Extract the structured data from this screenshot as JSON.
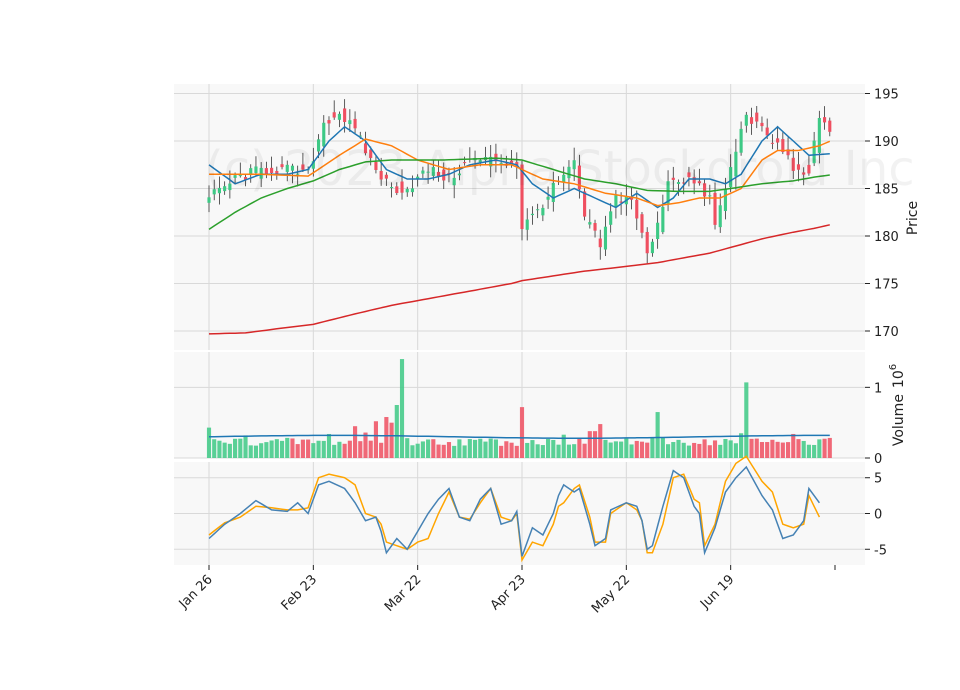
{
  "chart_data": {
    "type": "candlestick",
    "title": "",
    "watermark": "(c) 2023 Alpha Stockdroid Inc",
    "x_tick_labels": [
      "Jan 26",
      "Feb 23",
      "Mar 22",
      "Apr 23",
      "May 22",
      "Jun 19"
    ],
    "x_tick_index": [
      0,
      20,
      40,
      60,
      80,
      100
    ],
    "n_bars": 120,
    "colors": {
      "up": "#3dc985",
      "down": "#ef4f60",
      "ma_short": "#1f77b4",
      "ma_mid": "#ff7f0e",
      "ma_long": "#2ca02c",
      "ma_200": "#d62728",
      "volume_ma": "#1f77b4",
      "osc_1": "#4682b4",
      "osc_2": "#ffa500",
      "panel_bg": "#f8f8f8",
      "grid": "#d9d9d9"
    },
    "price_panel": {
      "ylabel": "Price",
      "ylim": [
        168,
        196
      ],
      "yticks": [
        170,
        175,
        180,
        185,
        190,
        195
      ],
      "close_keyframes": [
        [
          0,
          184
        ],
        [
          5,
          186
        ],
        [
          10,
          187
        ],
        [
          15,
          187
        ],
        [
          19,
          186.5
        ],
        [
          22,
          192
        ],
        [
          25,
          193
        ],
        [
          28,
          191
        ],
        [
          32,
          187
        ],
        [
          35,
          185
        ],
        [
          38,
          185
        ],
        [
          42,
          187
        ],
        [
          46,
          186
        ],
        [
          50,
          188
        ],
        [
          55,
          188
        ],
        [
          59,
          187.5
        ],
        [
          60,
          181
        ],
        [
          62,
          182
        ],
        [
          66,
          185
        ],
        [
          70,
          187.5
        ],
        [
          72,
          182
        ],
        [
          75,
          179
        ],
        [
          78,
          184
        ],
        [
          81,
          184
        ],
        [
          84,
          178
        ],
        [
          86,
          181
        ],
        [
          88,
          186
        ],
        [
          92,
          186
        ],
        [
          94,
          185
        ],
        [
          96,
          184
        ],
        [
          97,
          181
        ],
        [
          99,
          185
        ],
        [
          101,
          189
        ],
        [
          103,
          193
        ],
        [
          106,
          191
        ],
        [
          110,
          189
        ],
        [
          113,
          186.5
        ],
        [
          115,
          187
        ],
        [
          117,
          192
        ],
        [
          120,
          190.5
        ]
      ],
      "ma_short_keyframes": [
        [
          0,
          187.5
        ],
        [
          5,
          185.5
        ],
        [
          10,
          186.5
        ],
        [
          15,
          186.5
        ],
        [
          19,
          187
        ],
        [
          23,
          190
        ],
        [
          26,
          191.5
        ],
        [
          30,
          190
        ],
        [
          34,
          187
        ],
        [
          38,
          186
        ],
        [
          42,
          186
        ],
        [
          46,
          186.5
        ],
        [
          50,
          187.5
        ],
        [
          55,
          188
        ],
        [
          59,
          187.5
        ],
        [
          62,
          185.5
        ],
        [
          66,
          184
        ],
        [
          70,
          185
        ],
        [
          74,
          184
        ],
        [
          78,
          183
        ],
        [
          82,
          184.5
        ],
        [
          86,
          183
        ],
        [
          89,
          184
        ],
        [
          92,
          186
        ],
        [
          96,
          186
        ],
        [
          99,
          185.5
        ],
        [
          102,
          186.5
        ],
        [
          106,
          190
        ],
        [
          109,
          191.5
        ],
        [
          112,
          190
        ],
        [
          115,
          188.5
        ],
        [
          120,
          188.7
        ]
      ],
      "ma_mid_keyframes": [
        [
          0,
          186.5
        ],
        [
          10,
          186.5
        ],
        [
          19,
          186.3
        ],
        [
          25,
          188.5
        ],
        [
          30,
          190.2
        ],
        [
          35,
          189.5
        ],
        [
          40,
          188
        ],
        [
          46,
          187
        ],
        [
          52,
          187.5
        ],
        [
          58,
          187.5
        ],
        [
          64,
          186
        ],
        [
          70,
          185.5
        ],
        [
          76,
          184.5
        ],
        [
          82,
          184
        ],
        [
          86,
          183.2
        ],
        [
          90,
          183.5
        ],
        [
          94,
          184
        ],
        [
          98,
          184
        ],
        [
          102,
          185
        ],
        [
          106,
          188
        ],
        [
          109,
          189
        ],
        [
          113,
          189
        ],
        [
          117,
          189.5
        ],
        [
          120,
          190.2
        ]
      ],
      "ma_long_keyframes": [
        [
          0,
          180.7
        ],
        [
          5,
          182.5
        ],
        [
          10,
          184
        ],
        [
          15,
          185
        ],
        [
          20,
          185.8
        ],
        [
          25,
          187
        ],
        [
          30,
          187.8
        ],
        [
          35,
          188
        ],
        [
          45,
          188
        ],
        [
          55,
          188.2
        ],
        [
          60,
          188
        ],
        [
          66,
          187
        ],
        [
          72,
          186
        ],
        [
          78,
          185.5
        ],
        [
          84,
          184.8
        ],
        [
          90,
          184.7
        ],
        [
          96,
          184.7
        ],
        [
          100,
          185
        ],
        [
          106,
          185.5
        ],
        [
          112,
          185.8
        ],
        [
          116,
          186.2
        ],
        [
          120,
          186.5
        ]
      ],
      "ma_200_keyframes": [
        [
          0,
          169.7
        ],
        [
          7,
          169.8
        ],
        [
          14,
          170.3
        ],
        [
          20,
          170.7
        ],
        [
          28,
          171.8
        ],
        [
          35,
          172.7
        ],
        [
          42,
          173.4
        ],
        [
          50,
          174.2
        ],
        [
          58,
          175
        ],
        [
          60,
          175.3
        ],
        [
          66,
          175.8
        ],
        [
          72,
          176.3
        ],
        [
          80,
          176.8
        ],
        [
          86,
          177.2
        ],
        [
          90,
          177.6
        ],
        [
          96,
          178.2
        ],
        [
          100,
          178.8
        ],
        [
          106,
          179.7
        ],
        [
          112,
          180.4
        ],
        [
          116,
          180.8
        ],
        [
          120,
          181.3
        ]
      ]
    },
    "volume_panel": {
      "ylabel": "Volume",
      "scale_label": "10^6",
      "ylim": [
        0,
        1.5
      ],
      "yticks": [
        0,
        1
      ],
      "base_volume": 0.23,
      "spikes": [
        [
          0,
          0.43
        ],
        [
          7,
          0.32
        ],
        [
          23,
          0.34
        ],
        [
          28,
          0.45
        ],
        [
          30,
          0.36
        ],
        [
          32,
          0.52
        ],
        [
          34,
          0.58
        ],
        [
          35,
          0.5
        ],
        [
          36,
          0.75
        ],
        [
          37,
          1.4
        ],
        [
          60,
          0.72
        ],
        [
          68,
          0.33
        ],
        [
          73,
          0.38
        ],
        [
          74,
          0.38
        ],
        [
          75,
          0.48
        ],
        [
          86,
          0.65
        ],
        [
          102,
          0.35
        ],
        [
          103,
          1.07
        ],
        [
          112,
          0.34
        ]
      ],
      "ma_level": 0.3
    },
    "oscillator_panel": {
      "ylim": [
        -7.2,
        7.2
      ],
      "yticks": [
        -5,
        0,
        5
      ],
      "line1_keyframes": [
        [
          0,
          -3.5
        ],
        [
          3,
          -1.5
        ],
        [
          6,
          0
        ],
        [
          9,
          1.8
        ],
        [
          12,
          0.5
        ],
        [
          15,
          0.3
        ],
        [
          17,
          1.5
        ],
        [
          19,
          0
        ],
        [
          21,
          4
        ],
        [
          23,
          4.5
        ],
        [
          26,
          3.5
        ],
        [
          28,
          1.5
        ],
        [
          30,
          -1
        ],
        [
          32,
          -0.5
        ],
        [
          33,
          -2.5
        ],
        [
          34,
          -5.5
        ],
        [
          36,
          -3.5
        ],
        [
          38,
          -5
        ],
        [
          40,
          -2.5
        ],
        [
          42,
          0
        ],
        [
          44,
          2
        ],
        [
          46,
          3.5
        ],
        [
          48,
          -0.5
        ],
        [
          50,
          -1
        ],
        [
          52,
          2
        ],
        [
          54,
          3.5
        ],
        [
          56,
          -1.5
        ],
        [
          58,
          -1
        ],
        [
          59,
          0.3
        ],
        [
          60,
          -6
        ],
        [
          62,
          -2
        ],
        [
          64,
          -3
        ],
        [
          66,
          0
        ],
        [
          67,
          2.5
        ],
        [
          68,
          4
        ],
        [
          70,
          3
        ],
        [
          71,
          3.5
        ],
        [
          73,
          -1.5
        ],
        [
          74,
          -4.5
        ],
        [
          76,
          -3.5
        ],
        [
          77,
          0.5
        ],
        [
          80,
          1.5
        ],
        [
          82,
          1
        ],
        [
          83,
          -1
        ],
        [
          84,
          -5
        ],
        [
          85,
          -4.5
        ],
        [
          87,
          1
        ],
        [
          89,
          6
        ],
        [
          91,
          5
        ],
        [
          93,
          1
        ],
        [
          94,
          0
        ],
        [
          95,
          -5.5
        ],
        [
          97,
          -2
        ],
        [
          99,
          3
        ],
        [
          101,
          5
        ],
        [
          103,
          6.5
        ],
        [
          106,
          2.5
        ],
        [
          108,
          0.5
        ],
        [
          110,
          -3.5
        ],
        [
          112,
          -3
        ],
        [
          114,
          -1
        ],
        [
          115,
          3.5
        ],
        [
          117,
          1.5
        ]
      ],
      "line2_keyframes": [
        [
          0,
          -3
        ],
        [
          3,
          -1.3
        ],
        [
          6,
          -0.5
        ],
        [
          9,
          1
        ],
        [
          12,
          0.8
        ],
        [
          15,
          0.5
        ],
        [
          17,
          0.5
        ],
        [
          19,
          0.8
        ],
        [
          21,
          5
        ],
        [
          23,
          5.5
        ],
        [
          26,
          5
        ],
        [
          28,
          4
        ],
        [
          30,
          0
        ],
        [
          32,
          -0.5
        ],
        [
          33,
          -1.5
        ],
        [
          34,
          -4
        ],
        [
          36,
          -4.5
        ],
        [
          38,
          -5
        ],
        [
          40,
          -4
        ],
        [
          42,
          -3.5
        ],
        [
          44,
          0
        ],
        [
          46,
          3
        ],
        [
          48,
          -0.5
        ],
        [
          50,
          -0.8
        ],
        [
          52,
          1.5
        ],
        [
          54,
          3.5
        ],
        [
          56,
          -0.5
        ],
        [
          58,
          -1
        ],
        [
          59,
          0
        ],
        [
          60,
          -6.5
        ],
        [
          62,
          -4
        ],
        [
          64,
          -4.5
        ],
        [
          66,
          -1.5
        ],
        [
          67,
          1
        ],
        [
          68,
          1.5
        ],
        [
          70,
          3.5
        ],
        [
          71,
          4
        ],
        [
          73,
          -0.5
        ],
        [
          74,
          -4
        ],
        [
          76,
          -4
        ],
        [
          77,
          0
        ],
        [
          80,
          1.5
        ],
        [
          82,
          0.5
        ],
        [
          83,
          -1
        ],
        [
          84,
          -5.5
        ],
        [
          85,
          -5.5
        ],
        [
          87,
          -1.5
        ],
        [
          89,
          5
        ],
        [
          91,
          5.5
        ],
        [
          93,
          2
        ],
        [
          94,
          1.5
        ],
        [
          95,
          -4.5
        ],
        [
          97,
          -1.5
        ],
        [
          99,
          4.5
        ],
        [
          101,
          7
        ],
        [
          103,
          8
        ],
        [
          106,
          4.5
        ],
        [
          108,
          3
        ],
        [
          110,
          -1.5
        ],
        [
          112,
          -2
        ],
        [
          114,
          -1.5
        ],
        [
          115,
          2.5
        ],
        [
          117,
          -0.5
        ]
      ]
    }
  }
}
